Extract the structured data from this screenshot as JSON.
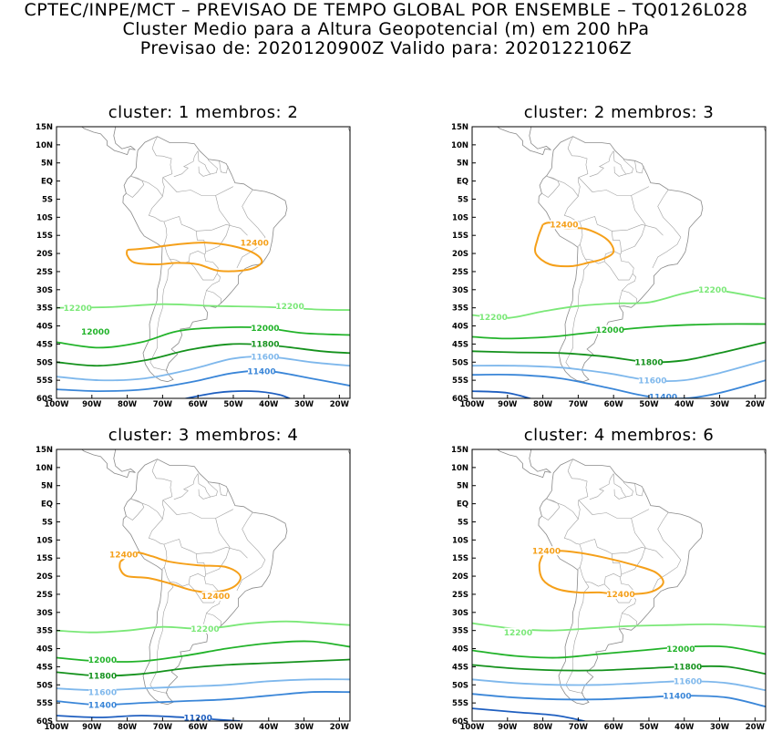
{
  "header": {
    "line1": "CPTEC/INPE/MCT – PREVISAO DE TEMPO GLOBAL POR ENSEMBLE – TQ0126L028",
    "line2": "Cluster Medio para a Altura Geopotencial (m) em 200 hPa",
    "line3": "Previsao de: 2020120900Z    Valido para: 2020122106Z"
  },
  "colors": {
    "12400": "#f5a01a",
    "12200": "#7be878",
    "12000": "#22b32a",
    "11800": "#15921d",
    "11600": "#7fb8ec",
    "11400": "#3a86d8",
    "11200": "#1f5fc0"
  },
  "axes": {
    "lat_labels": [
      "15N",
      "10N",
      "5N",
      "EQ",
      "5S",
      "10S",
      "15S",
      "20S",
      "25S",
      "30S",
      "35S",
      "40S",
      "45S",
      "50S",
      "55S",
      "60S"
    ],
    "lon_labels": [
      "100W",
      "90W",
      "80W",
      "70W",
      "60W",
      "50W",
      "40W",
      "30W",
      "20W"
    ]
  },
  "panels": [
    {
      "title": "cluster: 1   membros: 2",
      "contours": [
        {
          "level": "12400",
          "labels": [
            {
              "text": "12400",
              "lon": -44,
              "lat": -17
            }
          ]
        },
        {
          "level": "12200",
          "labels": [
            {
              "text": "12200",
              "lon": -94,
              "lat": -35
            },
            {
              "text": "12200",
              "lon": -34,
              "lat": -34.5
            }
          ]
        },
        {
          "level": "12000",
          "labels": [
            {
              "text": "12000",
              "lon": -89,
              "lat": -41.5
            },
            {
              "text": "12000",
              "lon": -41,
              "lat": -40.5
            }
          ]
        },
        {
          "level": "11800",
          "labels": [
            {
              "text": "11800",
              "lon": -41,
              "lat": -45
            }
          ]
        },
        {
          "level": "11600",
          "labels": [
            {
              "text": "11600",
              "lon": -41,
              "lat": -48.5
            }
          ]
        },
        {
          "level": "11400",
          "labels": [
            {
              "text": "11400",
              "lon": -42,
              "lat": -52.5
            }
          ]
        }
      ]
    },
    {
      "title": "cluster: 2   membros: 3",
      "contours": [
        {
          "level": "12400",
          "labels": [
            {
              "text": "12400",
              "lon": -74,
              "lat": -12
            }
          ]
        },
        {
          "level": "12200",
          "labels": [
            {
              "text": "12200",
              "lon": -94,
              "lat": -37.5
            },
            {
              "text": "12200",
              "lon": -32,
              "lat": -30
            }
          ]
        },
        {
          "level": "12000",
          "labels": [
            {
              "text": "12000",
              "lon": -61,
              "lat": -41
            }
          ]
        },
        {
          "level": "11800",
          "labels": [
            {
              "text": "11800",
              "lon": -50,
              "lat": -50
            }
          ]
        },
        {
          "level": "11600",
          "labels": [
            {
              "text": "11600",
              "lon": -49,
              "lat": -55
            }
          ]
        },
        {
          "level": "11400",
          "labels": [
            {
              "text": "11400",
              "lon": -46,
              "lat": -59.5
            }
          ]
        }
      ]
    },
    {
      "title": "cluster: 3   membros: 4",
      "contours": [
        {
          "level": "12400",
          "labels": [
            {
              "text": "12400",
              "lon": -81,
              "lat": -14
            },
            {
              "text": "12400",
              "lon": -55,
              "lat": -25.5
            }
          ]
        },
        {
          "level": "12200",
          "labels": [
            {
              "text": "12200",
              "lon": -58,
              "lat": -34.5
            }
          ]
        },
        {
          "level": "12000",
          "labels": [
            {
              "text": "12000",
              "lon": -87,
              "lat": -43
            }
          ]
        },
        {
          "level": "11800",
          "labels": [
            {
              "text": "11800",
              "lon": -87,
              "lat": -47.5
            }
          ]
        },
        {
          "level": "11600",
          "labels": [
            {
              "text": "11600",
              "lon": -87,
              "lat": -52
            }
          ]
        },
        {
          "level": "11400",
          "labels": [
            {
              "text": "11400",
              "lon": -87,
              "lat": -55.5
            }
          ]
        },
        {
          "level": "11200",
          "labels": [
            {
              "text": "11200",
              "lon": -60,
              "lat": -59
            }
          ]
        }
      ]
    },
    {
      "title": "cluster: 4   membros: 6",
      "contours": [
        {
          "level": "12400",
          "labels": [
            {
              "text": "12400",
              "lon": -79,
              "lat": -13
            },
            {
              "text": "12400",
              "lon": -58,
              "lat": -25
            }
          ]
        },
        {
          "level": "12200",
          "labels": [
            {
              "text": "12200",
              "lon": -87,
              "lat": -35.5
            }
          ]
        },
        {
          "level": "12000",
          "labels": [
            {
              "text": "12000",
              "lon": -41,
              "lat": -40
            }
          ]
        },
        {
          "level": "11800",
          "labels": [
            {
              "text": "11800",
              "lon": -39,
              "lat": -45
            }
          ]
        },
        {
          "level": "11600",
          "labels": [
            {
              "text": "11600",
              "lon": -39,
              "lat": -49
            }
          ]
        },
        {
          "level": "11400",
          "labels": [
            {
              "text": "11400",
              "lon": -42,
              "lat": -53
            }
          ]
        }
      ]
    }
  ]
}
